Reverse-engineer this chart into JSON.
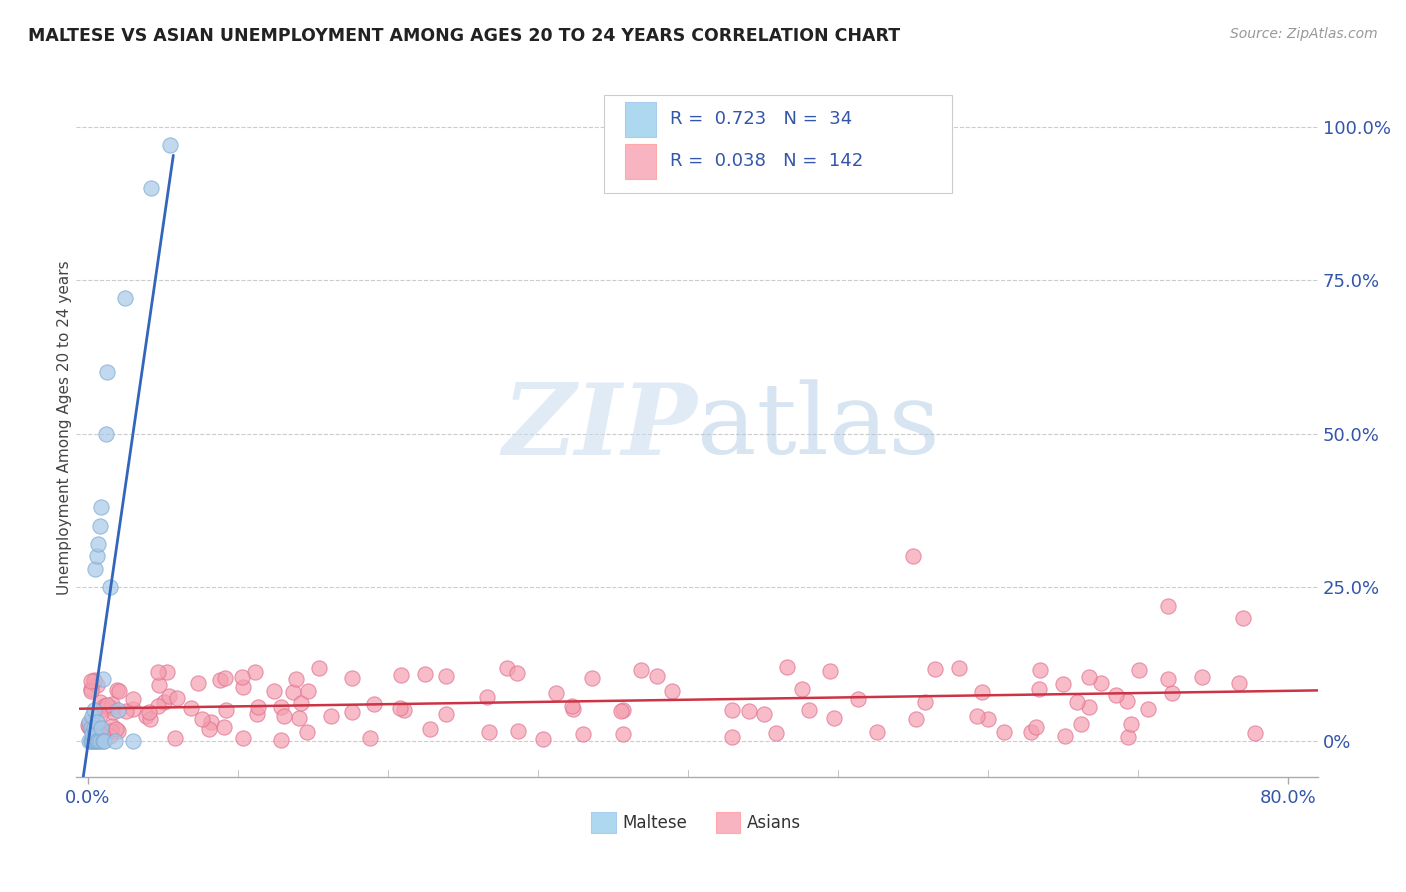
{
  "title": "MALTESE VS ASIAN UNEMPLOYMENT AMONG AGES 20 TO 24 YEARS CORRELATION CHART",
  "source": "Source: ZipAtlas.com",
  "ylabel": "Unemployment Among Ages 20 to 24 years",
  "xlim": [
    -0.008,
    0.82
  ],
  "ylim": [
    -0.06,
    1.08
  ],
  "maltese_R": 0.723,
  "maltese_N": 34,
  "asian_R": 0.038,
  "asian_N": 142,
  "maltese_color": "#A8C8E8",
  "maltese_edge": "#7AAAD0",
  "asian_color": "#F4A0B0",
  "asian_edge": "#E07090",
  "maltese_trend_color": "#3366BB",
  "asian_trend_color": "#CC3344",
  "legend_color_maltese": "#ADD8F0",
  "legend_color_asian": "#F8B4C0",
  "legend_text_color": "#3355AA",
  "background_color": "#FFFFFF",
  "grid_color": "#CCCCCC",
  "ytick_values": [
    0.0,
    0.25,
    0.5,
    0.75,
    1.0
  ],
  "ytick_labels": [
    "0%",
    "25.0%",
    "50.0%",
    "75.0%",
    "100.0%"
  ],
  "xtick_values": [
    0.0,
    0.8
  ],
  "xtick_labels": [
    "0.0%",
    "80.0%"
  ]
}
